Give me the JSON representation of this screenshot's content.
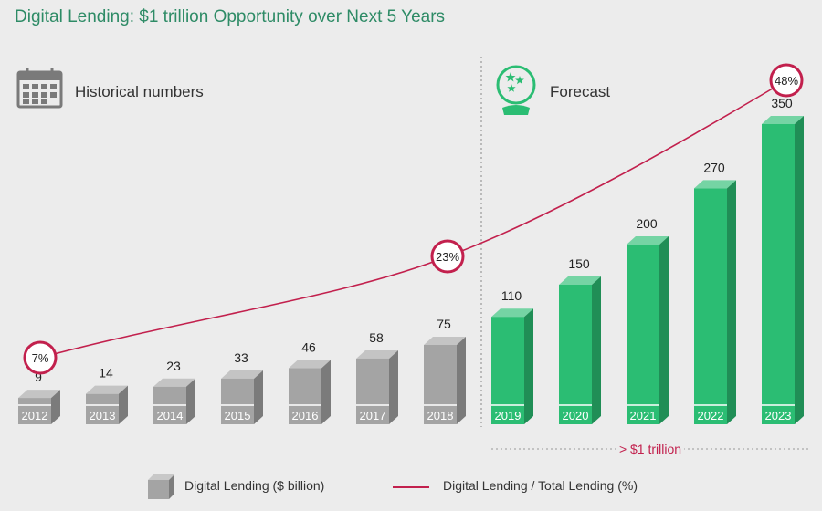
{
  "title": "Digital Lending: $1 trillion Opportunity over Next 5 Years",
  "sections": {
    "historical": {
      "label": "Historical numbers",
      "icon": "calendar-icon"
    },
    "forecast": {
      "label": "Forecast",
      "icon": "crystal-ball-icon"
    }
  },
  "forecast_bracket_label": "> $1 trillion",
  "legend": {
    "bars": "Digital Lending ($ billion)",
    "line": "Digital Lending / Total Lending (%)"
  },
  "colors": {
    "historical_bar": "#a4a4a4",
    "forecast_bar": "#2bbd73",
    "line": "#c2204d",
    "title": "#2e8b66"
  },
  "chart_data": {
    "type": "bar",
    "categories": [
      "2012",
      "2013",
      "2014",
      "2015",
      "2016",
      "2017",
      "2018",
      "2019",
      "2020",
      "2021",
      "2022",
      "2023"
    ],
    "series": [
      {
        "name": "Digital Lending ($ billion)",
        "values": [
          9,
          14,
          23,
          33,
          46,
          58,
          75,
          110,
          150,
          200,
          270,
          350
        ]
      }
    ],
    "forecast_from": "2019",
    "line_series": {
      "name": "Digital Lending / Total Lending (%)",
      "labeled_points": [
        {
          "category": "2012",
          "label": "7%"
        },
        {
          "category": "2018",
          "label": "23%"
        },
        {
          "category": "2023",
          "label": "48%"
        }
      ]
    }
  }
}
